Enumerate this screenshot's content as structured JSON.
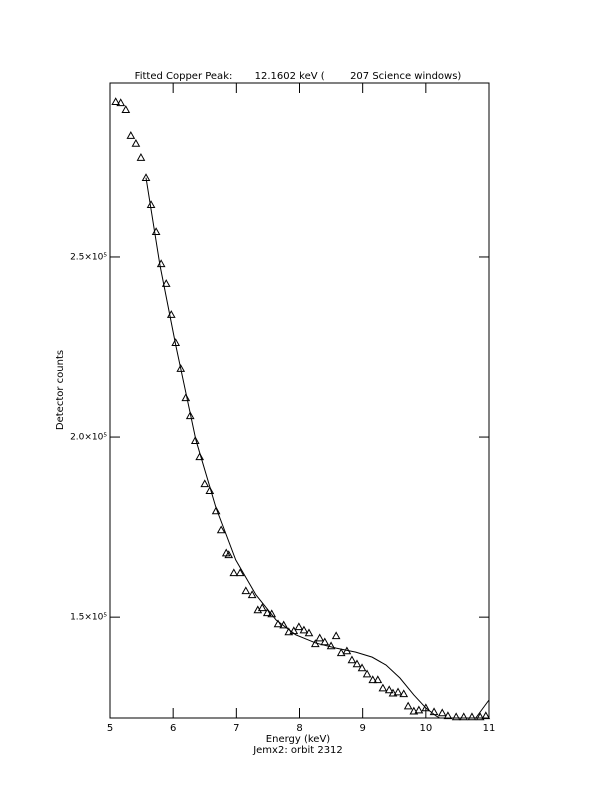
{
  "chart_data": {
    "type": "scatter",
    "title": "Fitted Copper Peak:       12.1602 keV (        207 Science windows)",
    "x_label": "Energy (keV)",
    "subtitle": "Jemx2: orbit 2312",
    "y_label": "Detector counts",
    "xlim": [
      5,
      11
    ],
    "xticks": [
      5,
      6,
      7,
      8,
      9,
      10,
      11
    ],
    "ylim": [
      122000,
      298300
    ],
    "yticks": [
      {
        "value": 150000,
        "label": "1.5×10⁵"
      },
      {
        "value": 200000,
        "label": "2.0×10⁵"
      },
      {
        "value": 250000,
        "label": "2.5×10⁵"
      }
    ],
    "series": [
      {
        "mode": "markers",
        "marker": "triangle",
        "color": "#000000",
        "x": [
          5.09,
          5.17,
          5.25,
          5.33,
          5.41,
          5.49,
          5.57,
          5.65,
          5.73,
          5.81,
          5.89,
          5.97,
          6.04,
          6.12,
          6.2,
          6.27,
          6.35,
          6.42,
          6.5,
          6.58,
          6.68,
          6.76,
          6.84,
          6.88,
          6.96,
          7.06,
          7.15,
          7.25,
          7.34,
          7.41,
          7.49,
          7.56,
          7.66,
          7.75,
          7.83,
          7.91,
          7.99,
          8.07,
          8.15,
          8.25,
          8.32,
          8.4,
          8.5,
          8.58,
          8.66,
          8.75,
          8.83,
          8.91,
          8.99,
          9.07,
          9.16,
          9.24,
          9.32,
          9.42,
          9.48,
          9.56,
          9.65,
          9.72,
          9.81,
          9.89,
          10.0,
          10.13,
          10.26,
          10.35,
          10.48,
          10.6,
          10.73,
          10.86,
          10.95
        ],
        "values": [
          293100,
          292800,
          290900,
          283700,
          281500,
          277600,
          272000,
          264500,
          257000,
          248100,
          242600,
          234000,
          226200,
          219000,
          210900,
          205900,
          199000,
          194500,
          187000,
          185100,
          179500,
          174200,
          167800,
          167300,
          162300,
          162300,
          157300,
          156200,
          152000,
          152600,
          151200,
          150900,
          148100,
          147800,
          145900,
          146200,
          147300,
          146400,
          145600,
          142600,
          144200,
          143100,
          142000,
          144800,
          140100,
          140600,
          138100,
          137000,
          135900,
          134200,
          132600,
          132600,
          130300,
          129800,
          128900,
          129200,
          128700,
          125300,
          123900,
          124200,
          124800,
          123700,
          123400,
          122600,
          122300,
          122300,
          122300,
          122300,
          122600
        ]
      },
      {
        "mode": "line",
        "color": "#000000",
        "x": [
          5.57,
          5.79,
          6.04,
          6.36,
          6.68,
          6.99,
          7.31,
          7.63,
          7.94,
          8.26,
          8.58,
          8.89,
          9.15,
          9.37,
          9.59,
          9.81,
          10.0,
          10.16,
          10.22
        ],
        "values": [
          272000,
          247800,
          225600,
          199200,
          180300,
          165900,
          156200,
          149200,
          145100,
          142800,
          141400,
          140300,
          138900,
          136700,
          133100,
          128400,
          124800,
          122600,
          122000
        ]
      },
      {
        "mode": "line",
        "color": "#000000",
        "x": [
          10.79,
          11.0
        ],
        "values": [
          122000,
          127000
        ]
      }
    ]
  }
}
